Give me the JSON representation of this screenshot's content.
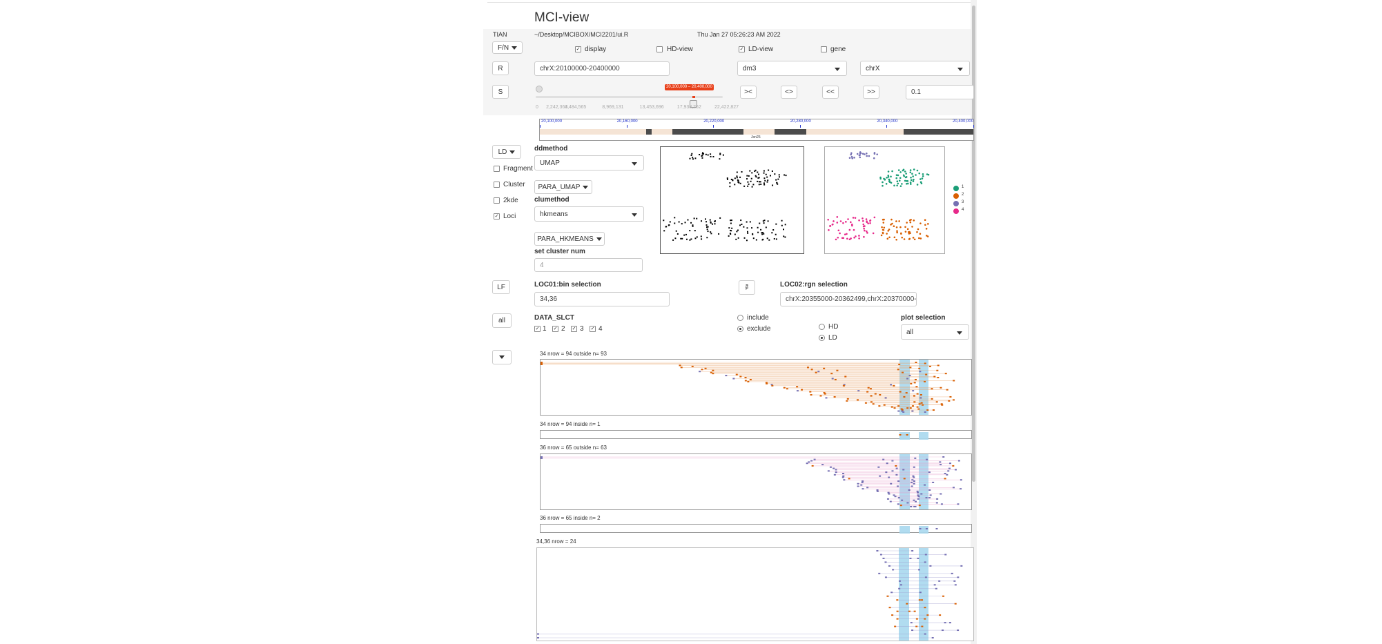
{
  "app": {
    "title": "MCI-view"
  },
  "info": {
    "user": "TIAN",
    "path": "~/Desktop/MCIBOX/MCI2201/ui.R",
    "timestamp": "Thu Jan 27 05:26:23 AM 2022"
  },
  "toolbar": {
    "fn_label": "F/N",
    "display_label": "display",
    "display_checked": true,
    "hdview_label": "HD-view",
    "hdview_checked": false,
    "ldview_label": "LD-view",
    "ldview_checked": true,
    "gene_label": "gene",
    "gene_checked": false
  },
  "region": {
    "r_label": "R",
    "value": "chrX:20100000-20400000",
    "genome": "dm3",
    "chrom": "chrX"
  },
  "slider": {
    "s_label": "S",
    "range_label": "20,100,000 – 20,400,000",
    "range_fraction": [
      0.838,
      0.851
    ],
    "ticks": [
      "0",
      "2,242,363",
      "4,484,565",
      "8,969,131",
      "13,453,696",
      "17,938,262",
      "22,422,827"
    ],
    "btn_shrink": "><",
    "btn_expand": "<>",
    "btn_left": "<<",
    "btn_right": ">>",
    "step_value": "0.1"
  },
  "genome_track": {
    "ticks": [
      "20,100,000",
      "20,160,000",
      "20,220,000",
      "20,280,000",
      "20,340,000",
      "20,400,000"
    ],
    "gene_label": "Jon25"
  },
  "controls": {
    "ld_label": "LD",
    "fragment_label": "Fragment",
    "fragment_checked": false,
    "cluster_label": "Cluster",
    "cluster_checked": false,
    "twokde_label": "2kde",
    "twokde_checked": false,
    "loci_label": "Loci",
    "loci_checked": true,
    "ddmethod_label": "ddmethod",
    "ddmethod_value": "UMAP",
    "para_umap_label": "PARA_UMAP",
    "clumethod_label": "clumethod",
    "clumethod_value": "hkmeans",
    "para_hkmeans_label": "PARA_HKMEANS",
    "cluster_num_label": "set cluster num",
    "cluster_num_placeholder": "4"
  },
  "legend": {
    "items": [
      {
        "label": "1",
        "color": "#1b9e77"
      },
      {
        "label": "2",
        "color": "#d95f02"
      },
      {
        "label": "3",
        "color": "#7570b3"
      },
      {
        "label": "4",
        "color": "#e7298a"
      }
    ]
  },
  "selection": {
    "lf_label": "LF",
    "loc01_label": "LOC01:bin selection",
    "loc01_value": "34,36",
    "loc02_icon": "🖗",
    "loc02_label": "LOC02:rgn selection",
    "loc02_value": "chrX:20355000-20362499,chrX:20370000-20377499",
    "all_label": "all",
    "data_slct_label": "DATA_SLCT",
    "data_items": [
      {
        "label": "1",
        "checked": true
      },
      {
        "label": "2",
        "checked": true
      },
      {
        "label": "3",
        "checked": true
      },
      {
        "label": "4",
        "checked": true
      }
    ],
    "include_label": "include",
    "include_checked": false,
    "exclude_label": "exclude",
    "exclude_checked": true,
    "hd_label": "HD",
    "hd_checked": false,
    "ld_label": "LD",
    "ld_checked": true,
    "plot_selection_label": "plot selection",
    "plot_selection_value": "all"
  },
  "plots": {
    "p1_title": "34 nrow = 94 outside n= 93",
    "p2_title": "34 nrow = 94 inside n= 1",
    "p3_title": "36 nrow = 65 outside n= 63",
    "p4_title": "36 nrow = 65 inside n= 2",
    "p5_title": "34,36 nrow = 24"
  }
}
